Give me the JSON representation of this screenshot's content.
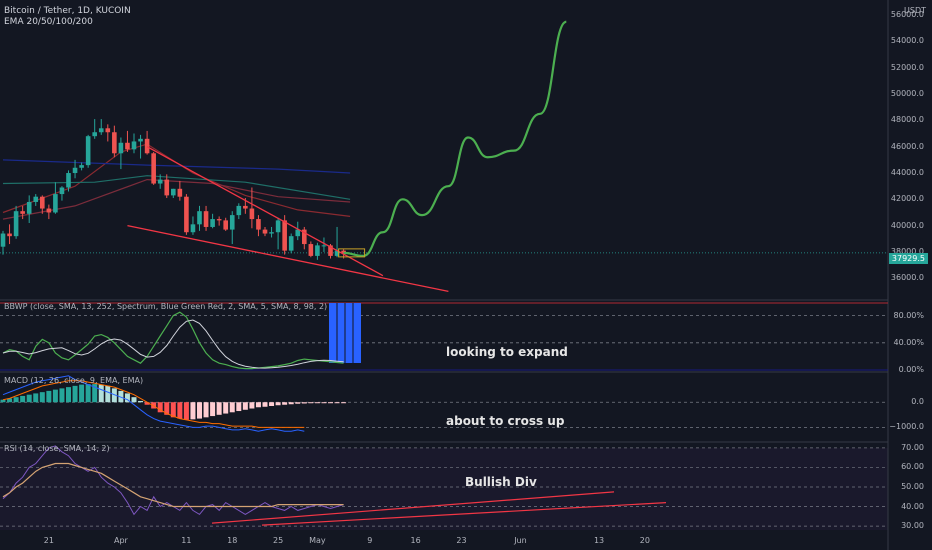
{
  "header": {
    "symbol_line": "Bitcoin / Tether, 1D, KUCOIN",
    "indicator_line": "EMA 20/50/100/200",
    "currency": "USDT"
  },
  "panels": {
    "bbwp_label": "BBWP (close, SMA, 13, 252, Spectrum, Blue Green Red, 2, SMA, 5, SMA, 8, 98, 2)",
    "macd_label": "MACD (12, 26, close, 9, EMA, EMA)",
    "rsi_label": "RSI (14, close, SMA, 14, 2)"
  },
  "annotations": {
    "bbwp_note": "looking to expand",
    "macd_note": "about to cross up",
    "rsi_note": "Bullish Div"
  },
  "price_axis": {
    "ticks": [
      "56000.0",
      "54000.0",
      "52000.0",
      "50000.0",
      "48000.0",
      "46000.0",
      "44000.0",
      "42000.0",
      "40000.0",
      "38000.0",
      "36000.0"
    ],
    "last_price": "37929.5"
  },
  "bbwp_axis": {
    "ticks": [
      "80.00%",
      "40.00%",
      "0.00%"
    ]
  },
  "macd_axis": {
    "ticks": [
      "0.0",
      "−1000.0"
    ]
  },
  "rsi_axis": {
    "ticks": [
      "70.00",
      "60.00",
      "50.00",
      "40.00",
      "30.00"
    ]
  },
  "time_axis": {
    "ticks": [
      "21",
      "Apr",
      "11",
      "18",
      "25",
      "May",
      "9",
      "16",
      "23",
      "Jun",
      "13",
      "20"
    ]
  },
  "colors": {
    "background": "#131722",
    "up": "#26a69a",
    "down": "#ef5350",
    "projection": "#4caf50",
    "trendline": "#f23645",
    "bbwp_spike": "#2962ff"
  },
  "chart_data": {
    "type": "candlestick",
    "title": "Bitcoin / Tether, 1D, KUCOIN",
    "ylabel": "USDT",
    "ylim": [
      34500,
      57000
    ],
    "x_range": [
      "2022-03-14",
      "2022-06-30"
    ],
    "candles": [
      {
        "date": "2022-03-14",
        "o": 38400,
        "h": 39600,
        "c": 39400,
        "l": 37800
      },
      {
        "date": "2022-03-15",
        "o": 39400,
        "h": 40100,
        "c": 39200,
        "l": 38600
      },
      {
        "date": "2022-03-16",
        "o": 39200,
        "h": 41500,
        "c": 41100,
        "l": 39000
      },
      {
        "date": "2022-03-17",
        "o": 41100,
        "h": 41500,
        "c": 40900,
        "l": 40500
      },
      {
        "date": "2022-03-18",
        "o": 40900,
        "h": 42300,
        "c": 41800,
        "l": 40200
      },
      {
        "date": "2022-03-19",
        "o": 41800,
        "h": 42400,
        "c": 42200,
        "l": 41500
      },
      {
        "date": "2022-03-20",
        "o": 42200,
        "h": 42300,
        "c": 41300,
        "l": 40900
      },
      {
        "date": "2022-03-21",
        "o": 41300,
        "h": 41600,
        "c": 41000,
        "l": 40500
      },
      {
        "date": "2022-03-22",
        "o": 41000,
        "h": 43300,
        "c": 42400,
        "l": 40900
      },
      {
        "date": "2022-03-23",
        "o": 42400,
        "h": 43000,
        "c": 42900,
        "l": 41900
      },
      {
        "date": "2022-03-24",
        "o": 42900,
        "h": 44200,
        "c": 44000,
        "l": 42600
      },
      {
        "date": "2022-03-25",
        "o": 44000,
        "h": 45000,
        "c": 44400,
        "l": 43600
      },
      {
        "date": "2022-03-26",
        "o": 44400,
        "h": 44800,
        "c": 44600,
        "l": 44200
      },
      {
        "date": "2022-03-27",
        "o": 44600,
        "h": 46900,
        "c": 46800,
        "l": 44400
      },
      {
        "date": "2022-03-28",
        "o": 46800,
        "h": 48100,
        "c": 47100,
        "l": 46600
      },
      {
        "date": "2022-03-29",
        "o": 47100,
        "h": 48100,
        "c": 47400,
        "l": 46900
      },
      {
        "date": "2022-03-30",
        "o": 47400,
        "h": 47700,
        "c": 47100,
        "l": 46400
      },
      {
        "date": "2022-03-31",
        "o": 47100,
        "h": 47600,
        "c": 45500,
        "l": 45200
      },
      {
        "date": "2022-04-01",
        "o": 45500,
        "h": 46700,
        "c": 46300,
        "l": 44300
      },
      {
        "date": "2022-04-02",
        "o": 46300,
        "h": 47200,
        "c": 45800,
        "l": 45600
      },
      {
        "date": "2022-04-03",
        "o": 45800,
        "h": 47000,
        "c": 46400,
        "l": 45500
      },
      {
        "date": "2022-04-04",
        "o": 46400,
        "h": 46900,
        "c": 46600,
        "l": 45100
      },
      {
        "date": "2022-04-05",
        "o": 46600,
        "h": 47200,
        "c": 45500,
        "l": 45400
      },
      {
        "date": "2022-04-06",
        "o": 45500,
        "h": 45600,
        "c": 43200,
        "l": 43100
      },
      {
        "date": "2022-04-07",
        "o": 43200,
        "h": 43900,
        "c": 43500,
        "l": 42800
      },
      {
        "date": "2022-04-08",
        "o": 43500,
        "h": 43900,
        "c": 42300,
        "l": 42100
      },
      {
        "date": "2022-04-09",
        "o": 42300,
        "h": 42800,
        "c": 42800,
        "l": 42100
      },
      {
        "date": "2022-04-10",
        "o": 42800,
        "h": 43400,
        "c": 42200,
        "l": 41900
      },
      {
        "date": "2022-04-11",
        "o": 42200,
        "h": 42400,
        "c": 39500,
        "l": 39300
      },
      {
        "date": "2022-04-12",
        "o": 39500,
        "h": 40700,
        "c": 40100,
        "l": 39300
      },
      {
        "date": "2022-04-13",
        "o": 40100,
        "h": 41500,
        "c": 41100,
        "l": 39600
      },
      {
        "date": "2022-04-14",
        "o": 41100,
        "h": 41500,
        "c": 39900,
        "l": 39600
      },
      {
        "date": "2022-04-15",
        "o": 39900,
        "h": 40900,
        "c": 40500,
        "l": 39800
      },
      {
        "date": "2022-04-16",
        "o": 40500,
        "h": 40700,
        "c": 40400,
        "l": 40000
      },
      {
        "date": "2022-04-17",
        "o": 40400,
        "h": 40600,
        "c": 39700,
        "l": 39600
      },
      {
        "date": "2022-04-18",
        "o": 39700,
        "h": 41100,
        "c": 40800,
        "l": 38600
      },
      {
        "date": "2022-04-19",
        "o": 40800,
        "h": 41700,
        "c": 41500,
        "l": 40500
      },
      {
        "date": "2022-04-20",
        "o": 41500,
        "h": 42100,
        "c": 41300,
        "l": 40900
      },
      {
        "date": "2022-04-21",
        "o": 41300,
        "h": 42900,
        "c": 40500,
        "l": 39800
      },
      {
        "date": "2022-04-22",
        "o": 40500,
        "h": 40800,
        "c": 39700,
        "l": 39200
      },
      {
        "date": "2022-04-23",
        "o": 39700,
        "h": 39900,
        "c": 39400,
        "l": 39200
      },
      {
        "date": "2022-04-24",
        "o": 39400,
        "h": 39900,
        "c": 39500,
        "l": 39100
      },
      {
        "date": "2022-04-25",
        "o": 39500,
        "h": 40600,
        "c": 40400,
        "l": 38200
      },
      {
        "date": "2022-04-26",
        "o": 40400,
        "h": 40800,
        "c": 38100,
        "l": 37800
      },
      {
        "date": "2022-04-27",
        "o": 38100,
        "h": 39400,
        "c": 39200,
        "l": 37900
      },
      {
        "date": "2022-04-28",
        "o": 39200,
        "h": 40300,
        "c": 39700,
        "l": 38900
      },
      {
        "date": "2022-04-29",
        "o": 39700,
        "h": 39900,
        "c": 38600,
        "l": 38200
      },
      {
        "date": "2022-04-30",
        "o": 38600,
        "h": 38800,
        "c": 37700,
        "l": 37600
      },
      {
        "date": "2022-05-01",
        "o": 37700,
        "h": 38700,
        "c": 38500,
        "l": 37400
      },
      {
        "date": "2022-05-02",
        "o": 38500,
        "h": 39100,
        "c": 38500,
        "l": 38000
      },
      {
        "date": "2022-05-03",
        "o": 38500,
        "h": 38600,
        "c": 37700,
        "l": 37500
      },
      {
        "date": "2022-05-04",
        "o": 37700,
        "h": 39900,
        "c": 38100,
        "l": 37600
      },
      {
        "date": "2022-05-05",
        "o": 38100,
        "h": 38200,
        "c": 37929.5,
        "l": 37500
      }
    ],
    "ema_20": [
      [
        "2022-03-14",
        41000
      ],
      [
        "2022-03-25",
        43000
      ],
      [
        "2022-04-01",
        45600
      ],
      [
        "2022-04-05",
        46200
      ],
      [
        "2022-04-12",
        44000
      ],
      [
        "2022-04-20",
        42300
      ],
      [
        "2022-04-28",
        41200
      ],
      [
        "2022-05-06",
        40700
      ]
    ],
    "ema_50": [
      [
        "2022-03-14",
        40500
      ],
      [
        "2022-03-25",
        41500
      ],
      [
        "2022-04-05",
        43500
      ],
      [
        "2022-04-15",
        43200
      ],
      [
        "2022-04-25",
        42200
      ],
      [
        "2022-05-06",
        41800
      ]
    ],
    "ema_100": [
      [
        "2022-03-14",
        43200
      ],
      [
        "2022-03-28",
        43300
      ],
      [
        "2022-04-05",
        43800
      ],
      [
        "2022-04-20",
        43300
      ],
      [
        "2022-05-06",
        42000
      ]
    ],
    "ema_200": [
      [
        "2022-03-14",
        45000
      ],
      [
        "2022-04-05",
        44600
      ],
      [
        "2022-04-25",
        44300
      ],
      [
        "2022-05-06",
        44000
      ]
    ],
    "projection": [
      [
        "2022-05-05",
        37929.5
      ],
      [
        "2022-05-08",
        37700
      ],
      [
        "2022-05-11",
        39500
      ],
      [
        "2022-05-14",
        42000
      ],
      [
        "2022-05-17",
        40800
      ],
      [
        "2022-05-21",
        43000
      ],
      [
        "2022-05-24",
        46700
      ],
      [
        "2022-05-27",
        45200
      ],
      [
        "2022-05-31",
        45700
      ],
      [
        "2022-06-04",
        48500
      ],
      [
        "2022-06-08",
        55500
      ]
    ],
    "trendlines": [
      {
        "from": [
          "2022-04-05",
          46000
        ],
        "to": [
          "2022-05-11",
          36200
        ]
      },
      {
        "from": [
          "2022-04-02",
          40000
        ],
        "to": [
          "2022-05-21",
          35000
        ]
      }
    ],
    "bbwp": {
      "ylim": [
        0,
        100
      ],
      "levels": [
        80,
        40,
        0
      ],
      "values": [
        25,
        30,
        28,
        20,
        15,
        35,
        45,
        40,
        25,
        18,
        15,
        22,
        30,
        38,
        50,
        52,
        48,
        40,
        30,
        20,
        15,
        10,
        20,
        35,
        50,
        65,
        80,
        85,
        78,
        60,
        40,
        25,
        15,
        10,
        8,
        5,
        3,
        2,
        2,
        3,
        4,
        5,
        6,
        8,
        10,
        14,
        16,
        15,
        14,
        13,
        12,
        11,
        10
      ]
    },
    "macd": {
      "ylim": [
        -1500,
        1200
      ],
      "levels": [
        0,
        -1000
      ],
      "histogram": [
        100,
        150,
        200,
        250,
        300,
        350,
        400,
        450,
        500,
        550,
        600,
        650,
        700,
        720,
        720,
        700,
        650,
        550,
        450,
        350,
        200,
        50,
        -100,
        -250,
        -400,
        -500,
        -600,
        -650,
        -700,
        -680,
        -650,
        -600,
        -550,
        -500,
        -450,
        -400,
        -350,
        -300,
        -250,
        -200,
        -180,
        -150,
        -120,
        -100,
        -80,
        -60,
        -50,
        -40,
        -30,
        -25,
        -20,
        -15,
        -10
      ],
      "macd_line": [
        300,
        400,
        500,
        600,
        700,
        800,
        850,
        900,
        950,
        1000,
        1050,
        900,
        800,
        700,
        600,
        500,
        400,
        300,
        200,
        100,
        -100,
        -300,
        -500,
        -650,
        -750,
        -800,
        -850,
        -900,
        -950,
        -1000,
        -1000,
        -950,
        -950,
        -1000,
        -1050,
        -1100,
        -1100,
        -1050,
        -1100,
        -1150,
        -1100,
        -1050,
        -1100,
        -1150,
        -1150,
        -1100,
        -1150
      ],
      "signal_line": [
        100,
        150,
        250,
        350,
        450,
        550,
        650,
        700,
        750,
        800,
        850,
        850,
        850,
        800,
        750,
        700,
        650,
        600,
        500,
        400,
        300,
        150,
        0,
        -150,
        -300,
        -450,
        -550,
        -650,
        -700,
        -750,
        -800,
        -800,
        -850,
        -850,
        -900,
        -950,
        -950,
        -950,
        -950,
        -1000,
        -1000,
        -1000,
        -1000,
        -1000,
        -1000,
        -1000,
        -1000
      ]
    },
    "rsi": {
      "ylim": [
        28,
        73
      ],
      "levels": [
        70,
        60,
        50,
        40,
        30
      ],
      "values": [
        44,
        47,
        52,
        55,
        60,
        62,
        66,
        70,
        71,
        68,
        66,
        62,
        60,
        58,
        60,
        55,
        52,
        50,
        47,
        42,
        36,
        40,
        38,
        45,
        40,
        42,
        40,
        38,
        42,
        38,
        36,
        40,
        41,
        38,
        42,
        40,
        38,
        36,
        38,
        40,
        42,
        40,
        39,
        38,
        40,
        38,
        39,
        40,
        41,
        40,
        39,
        40,
        41
      ],
      "ma": [
        45,
        47,
        50,
        52,
        55,
        58,
        60,
        61,
        62,
        62,
        62,
        61,
        60,
        59,
        58,
        57,
        55,
        53,
        51,
        49,
        47,
        45,
        44,
        43,
        42,
        41,
        40,
        40,
        40,
        40,
        40,
        40,
        40,
        40,
        40,
        40,
        40,
        40,
        40,
        40,
        40,
        40,
        41,
        41,
        41,
        41,
        41,
        41,
        41,
        41,
        41,
        41,
        41
      ]
    }
  }
}
